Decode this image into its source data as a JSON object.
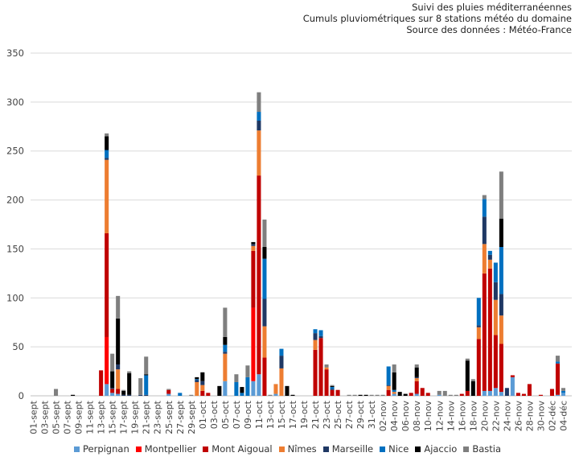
{
  "titles": {
    "line1": "Suivi des pluies méditerranéennes",
    "line2": "Cumuls pluviométriques sur 8 stations météo du domaine",
    "line3": "Source des données : Météo-France"
  },
  "colors": [
    "#5b9bd5",
    "#ff0000",
    "#c00000",
    "#ed7d31",
    "#1f3864",
    "#0070c0",
    "#000000",
    "#7f7f7f"
  ],
  "chart_data": {
    "type": "bar",
    "stacked": true,
    "title": "Suivi des pluies méditerranéennes — Cumuls pluviométriques sur 8 stations météo du domaine",
    "xlabel": "",
    "ylabel": "",
    "ylim": [
      0,
      350
    ],
    "yticks": [
      0,
      50,
      100,
      150,
      200,
      250,
      300,
      350
    ],
    "grid": true,
    "legend": "bottom",
    "categories": [
      "01-sept",
      "02-sept",
      "03-sept",
      "04-sept",
      "05-sept",
      "06-sept",
      "07-sept",
      "08-sept",
      "09-sept",
      "10-sept",
      "11-sept",
      "12-sept",
      "13-sept",
      "14-sept",
      "15-sept",
      "16-sept",
      "17-sept",
      "18-sept",
      "19-sept",
      "20-sept",
      "21-sept",
      "22-sept",
      "23-sept",
      "24-sept",
      "25-sept",
      "26-sept",
      "27-sept",
      "28-sept",
      "29-sept",
      "30-sept",
      "01-oct",
      "02-oct",
      "03-oct",
      "04-oct",
      "05-oct",
      "06-oct",
      "07-oct",
      "08-oct",
      "09-oct",
      "10-oct",
      "11-oct",
      "12-oct",
      "13-oct",
      "14-oct",
      "15-oct",
      "16-oct",
      "17-oct",
      "18-oct",
      "19-oct",
      "20-oct",
      "21-oct",
      "22-oct",
      "23-oct",
      "24-oct",
      "25-oct",
      "26-oct",
      "27-oct",
      "28-oct",
      "29-oct",
      "30-oct",
      "31-oct",
      "01-nov",
      "02-nov",
      "03-nov",
      "04-nov",
      "05-nov",
      "06-nov",
      "07-nov",
      "08-nov",
      "09-nov",
      "10-nov",
      "11-nov",
      "12-nov",
      "13-nov",
      "14-nov",
      "15-nov",
      "16-nov",
      "17-nov",
      "18-nov",
      "19-nov",
      "20-nov",
      "21-nov",
      "22-nov",
      "23-nov",
      "24-nov",
      "25-nov",
      "26-nov",
      "27-nov",
      "28-nov",
      "29-nov",
      "30-nov",
      "01-déc",
      "02-déc",
      "03-déc",
      "04-déc",
      "05-déc"
    ],
    "x_labels": [
      "01-sept",
      "03-sept",
      "05-sept",
      "07-sept",
      "09-sept",
      "11-sept",
      "13-sept",
      "15-sept",
      "17-sept",
      "19-sept",
      "21-sept",
      "23-sept",
      "25-sept",
      "27-sept",
      "29-sept",
      "01-oct",
      "03-oct",
      "05-oct",
      "07-oct",
      "09-oct",
      "11-oct",
      "13-oct",
      "15-oct",
      "17-oct",
      "19-oct",
      "21-oct",
      "23-oct",
      "25-oct",
      "27-oct",
      "29-oct",
      "31-oct",
      "02-nov",
      "04-nov",
      "06-nov",
      "08-nov",
      "10-nov",
      "12-nov",
      "14-nov",
      "16-nov",
      "18-nov",
      "20-nov",
      "22-nov",
      "24-nov",
      "26-nov",
      "28-nov",
      "30-nov",
      "02-déc",
      "04-déc"
    ],
    "series": [
      {
        "name": "Perpignan",
        "values": [
          0,
          0,
          0,
          0,
          0,
          0,
          0,
          0,
          0,
          0,
          0,
          0,
          0,
          0,
          12,
          3,
          2,
          0,
          0,
          0,
          0,
          0,
          0,
          0,
          0,
          0,
          0,
          0,
          0,
          0,
          0,
          0,
          0,
          0,
          0,
          0,
          0,
          0,
          0,
          0,
          0,
          0,
          0,
          0,
          0,
          0,
          0,
          0,
          0,
          0,
          0,
          0,
          0,
          0,
          0,
          0,
          0,
          0,
          0,
          0,
          0,
          0,
          0,
          0,
          0,
          0,
          0,
          0,
          0,
          0,
          0,
          0,
          0,
          0,
          0,
          0,
          0,
          0,
          0,
          0,
          0,
          0,
          0,
          0,
          0,
          0,
          0,
          0,
          0,
          0,
          0,
          0,
          0,
          0,
          0,
          0
        ]
      },
      {
        "name": "Montpellier",
        "values": [
          0,
          0,
          0,
          0,
          0,
          0,
          0,
          0,
          0,
          0,
          0,
          0,
          0,
          0,
          0,
          0,
          0,
          0,
          0,
          0,
          0,
          0,
          0,
          0,
          0,
          0,
          0,
          0,
          0,
          0,
          0,
          0,
          0,
          0,
          0,
          0,
          0,
          0,
          0,
          0,
          0,
          0,
          0,
          0,
          0,
          0,
          0,
          0,
          0,
          0,
          0,
          0,
          0,
          0,
          0,
          0,
          0,
          0,
          0,
          0,
          0,
          0,
          0,
          0,
          0,
          0,
          0,
          0,
          0,
          0,
          0,
          0,
          0,
          0,
          0,
          0,
          0,
          0,
          0,
          0,
          0,
          0,
          0,
          0,
          0,
          0,
          0,
          0,
          0,
          0,
          0,
          0,
          0,
          0,
          0,
          0
        ]
      },
      {
        "name": "Mont Aigoual",
        "values": [
          0,
          0,
          0,
          0,
          0,
          0,
          0,
          0,
          0,
          0,
          0,
          0,
          0,
          0,
          0,
          0,
          0,
          0,
          0,
          0,
          0,
          0,
          0,
          0,
          0,
          0,
          0,
          0,
          0,
          0,
          0,
          0,
          0,
          0,
          0,
          0,
          0,
          0,
          0,
          0,
          0,
          0,
          0,
          0,
          0,
          0,
          0,
          0,
          0,
          0,
          0,
          0,
          0,
          0,
          0,
          0,
          0,
          0,
          0,
          0,
          0,
          0,
          0,
          0,
          0,
          0,
          0,
          0,
          0,
          0,
          0,
          0,
          0,
          0,
          0,
          0,
          0,
          0,
          0,
          0,
          0,
          0,
          0,
          0,
          0,
          0,
          0,
          0,
          0,
          0,
          0,
          0,
          0,
          0,
          0,
          0
        ]
      },
      {
        "name": "Nîmes",
        "values": [
          0,
          0,
          0,
          0,
          0,
          0,
          0,
          0,
          0,
          0,
          0,
          0,
          0,
          0,
          0,
          0,
          0,
          0,
          0,
          0,
          0,
          0,
          0,
          0,
          0,
          0,
          0,
          0,
          0,
          0,
          0,
          0,
          0,
          0,
          0,
          0,
          0,
          0,
          0,
          0,
          0,
          0,
          0,
          0,
          0,
          0,
          0,
          0,
          0,
          0,
          0,
          0,
          0,
          0,
          0,
          0,
          0,
          0,
          0,
          0,
          0,
          0,
          0,
          0,
          0,
          0,
          0,
          0,
          0,
          0,
          0,
          0,
          0,
          0,
          0,
          0,
          0,
          0,
          0,
          0,
          0,
          0,
          0,
          0,
          0,
          0,
          0,
          0,
          0,
          0,
          0,
          0,
          0,
          0,
          0,
          0
        ]
      },
      {
        "name": "Marseille",
        "values": [
          0,
          0,
          0,
          0,
          0,
          0,
          0,
          0,
          0,
          0,
          0,
          0,
          0,
          0,
          0,
          0,
          0,
          0,
          0,
          0,
          0,
          0,
          0,
          0,
          0,
          0,
          0,
          0,
          0,
          0,
          0,
          0,
          0,
          0,
          0,
          0,
          0,
          0,
          0,
          0,
          0,
          0,
          0,
          0,
          0,
          0,
          0,
          0,
          0,
          0,
          0,
          0,
          0,
          0,
          0,
          0,
          0,
          0,
          0,
          0,
          0,
          0,
          0,
          0,
          0,
          0,
          0,
          0,
          0,
          0,
          0,
          0,
          0,
          0,
          0,
          0,
          0,
          0,
          0,
          0,
          0,
          0,
          0,
          0,
          0,
          0,
          0,
          0,
          0,
          0,
          0,
          0,
          0,
          0,
          0,
          0
        ]
      },
      {
        "name": "Nice",
        "values": [
          0,
          0,
          0,
          0,
          0,
          0,
          0,
          0,
          0,
          0,
          0,
          0,
          0,
          0,
          0,
          0,
          0,
          0,
          0,
          0,
          0,
          0,
          0,
          0,
          0,
          0,
          0,
          0,
          0,
          0,
          0,
          0,
          0,
          0,
          0,
          0,
          0,
          0,
          0,
          0,
          0,
          0,
          0,
          0,
          0,
          0,
          0,
          0,
          0,
          0,
          0,
          0,
          0,
          0,
          0,
          0,
          0,
          0,
          0,
          0,
          0,
          0,
          0,
          0,
          0,
          0,
          0,
          0,
          0,
          0,
          0,
          0,
          0,
          0,
          0,
          0,
          0,
          0,
          0,
          0,
          0,
          0,
          0,
          0,
          0,
          0,
          0,
          0,
          0,
          0,
          0,
          0,
          0,
          0,
          0,
          0
        ]
      },
      {
        "name": "Ajaccio",
        "values": [
          0,
          0,
          0,
          0,
          0,
          0,
          0,
          0,
          0,
          0,
          0,
          0,
          0,
          0,
          0,
          0,
          0,
          0,
          0,
          0,
          0,
          0,
          0,
          0,
          0,
          0,
          0,
          0,
          0,
          0,
          0,
          0,
          0,
          0,
          0,
          0,
          0,
          0,
          0,
          0,
          0,
          0,
          0,
          0,
          0,
          0,
          0,
          0,
          0,
          0,
          0,
          0,
          0,
          0,
          0,
          0,
          0,
          0,
          0,
          0,
          0,
          0,
          0,
          0,
          0,
          0,
          0,
          0,
          0,
          0,
          0,
          0,
          0,
          0,
          0,
          0,
          0,
          0,
          0,
          0,
          0,
          0,
          0,
          0,
          0,
          0,
          0,
          0,
          0,
          0,
          0,
          0,
          0,
          0,
          0,
          0
        ]
      },
      {
        "name": "Bastia",
        "values": [
          0,
          0,
          0,
          0,
          0,
          0,
          0,
          0,
          0,
          0,
          0,
          0,
          0,
          0,
          0,
          0,
          0,
          0,
          0,
          0,
          0,
          0,
          0,
          0,
          0,
          0,
          0,
          0,
          0,
          0,
          0,
          0,
          0,
          0,
          0,
          0,
          0,
          0,
          0,
          0,
          0,
          0,
          0,
          0,
          0,
          0,
          0,
          0,
          0,
          0,
          0,
          0,
          0,
          0,
          0,
          0,
          0,
          0,
          0,
          0,
          0,
          0,
          0,
          0,
          0,
          0,
          0,
          0,
          0,
          0,
          0,
          0,
          0,
          0,
          0,
          0,
          0,
          0,
          0,
          0,
          0,
          0,
          0,
          0,
          0,
          0,
          0,
          0,
          0,
          0,
          0,
          0,
          0,
          0,
          0,
          0
        ]
      }
    ]
  }
}
